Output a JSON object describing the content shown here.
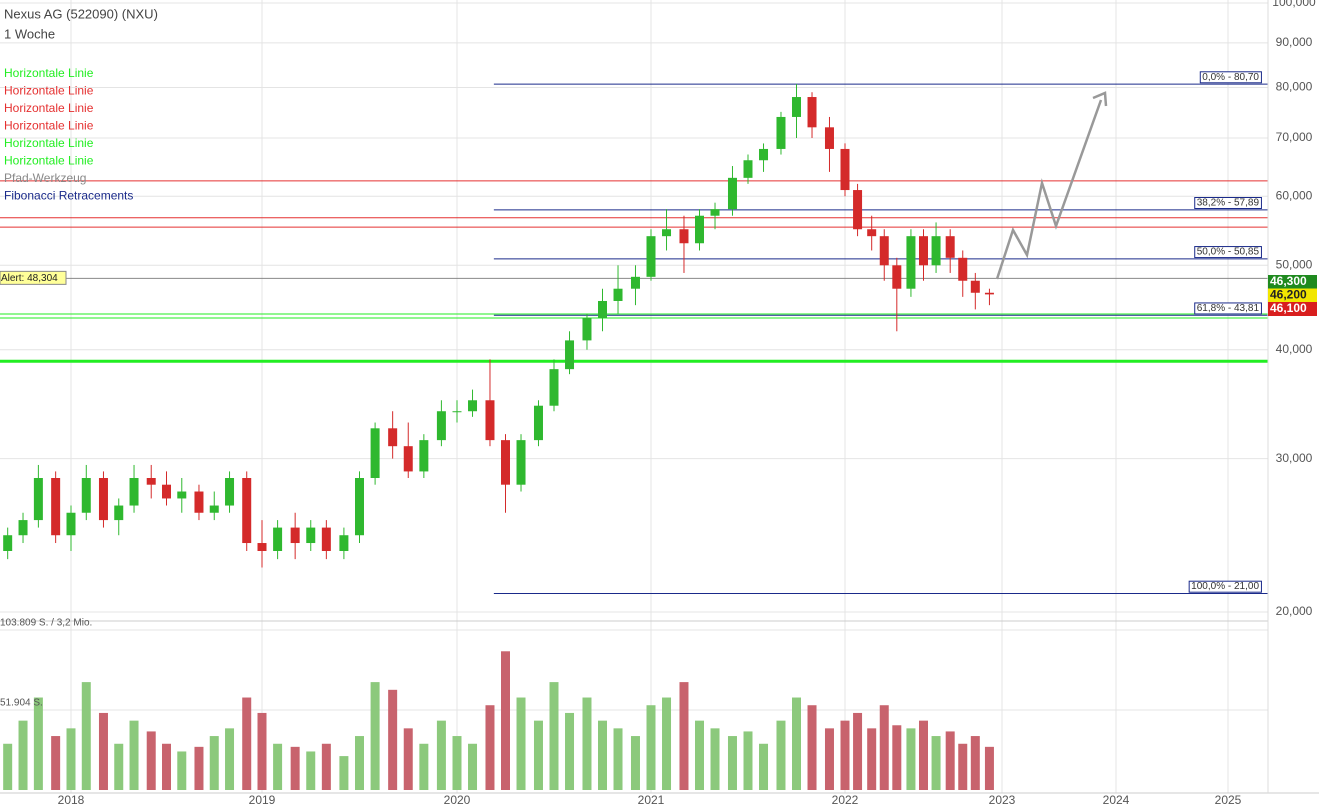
{
  "chart_data": {
    "type": "candlestick",
    "title": "Nexus AG (522090) (NXU)",
    "subtitle": "1 Woche",
    "x": [
      2017.67,
      2017.75,
      2017.83,
      2017.92,
      2018.0,
      2018.08,
      2018.17,
      2018.25,
      2018.33,
      2018.42,
      2018.5,
      2018.58,
      2018.67,
      2018.75,
      2018.83,
      2018.92,
      2019.0,
      2019.08,
      2019.17,
      2019.25,
      2019.33,
      2019.42,
      2019.5,
      2019.58,
      2019.67,
      2019.75,
      2019.83,
      2019.92,
      2020.0,
      2020.08,
      2020.17,
      2020.25,
      2020.33,
      2020.42,
      2020.5,
      2020.58,
      2020.67,
      2020.75,
      2020.83,
      2020.92,
      2021.0,
      2021.08,
      2021.17,
      2021.25,
      2021.33,
      2021.42,
      2021.5,
      2021.58,
      2021.67,
      2021.75,
      2021.83,
      2021.92,
      2022.0,
      2022.08,
      2022.17,
      2022.25,
      2022.33,
      2022.42,
      2022.5,
      2022.58,
      2022.67,
      2022.75,
      2022.83,
      2022.92
    ],
    "open": [
      23.5,
      24.5,
      25.5,
      28.5,
      24.5,
      26,
      28.5,
      25.5,
      26.5,
      28.5,
      28,
      27,
      27.5,
      26,
      26.5,
      28.5,
      24,
      23.5,
      25,
      24,
      25,
      23.5,
      24.5,
      28.5,
      32.5,
      31,
      29,
      31.5,
      34,
      34,
      35,
      31.5,
      28,
      31.5,
      34.5,
      38,
      41,
      43.5,
      45.5,
      47,
      48.5,
      54,
      55,
      53,
      57,
      58,
      63,
      66,
      68,
      74,
      78,
      72,
      68,
      61,
      55,
      54,
      50,
      47,
      54,
      50,
      54,
      51,
      48,
      46.5
    ],
    "high": [
      25,
      26,
      29.5,
      29,
      26.5,
      29.5,
      29,
      27,
      29.5,
      29.5,
      29,
      28.5,
      28,
      27.5,
      29,
      29,
      25.5,
      25.5,
      26,
      25.5,
      25.5,
      25,
      29,
      33,
      34,
      33,
      32,
      35,
      35,
      36,
      39,
      32,
      32,
      35,
      39,
      42,
      44,
      47,
      50,
      50,
      55,
      58,
      57,
      58,
      59,
      65,
      67,
      69,
      75,
      80.7,
      79,
      74,
      69,
      62,
      57,
      55,
      51,
      55,
      55,
      56,
      55,
      52,
      49,
      47
    ],
    "low": [
      23,
      24,
      25,
      24,
      23.5,
      25.5,
      25,
      24.5,
      26,
      27,
      26.5,
      26,
      25.5,
      25.5,
      26,
      23.5,
      22.5,
      23,
      23,
      23.5,
      23,
      23,
      24,
      28,
      30,
      28.5,
      28.5,
      31,
      33,
      33.5,
      31,
      26,
      27.5,
      31,
      34,
      37.5,
      40,
      42,
      44,
      45,
      48,
      52,
      49,
      52,
      55,
      57,
      62,
      64,
      67,
      70,
      70,
      64,
      60,
      54,
      52,
      48,
      42,
      46,
      48,
      49,
      49,
      46,
      44.5,
      45
    ],
    "close": [
      24.5,
      25.5,
      28.5,
      24.5,
      26,
      28.5,
      25.5,
      26.5,
      28.5,
      28,
      27,
      27.5,
      26,
      26.5,
      28.5,
      24,
      23.5,
      25,
      24,
      25,
      23.5,
      24.5,
      28.5,
      32.5,
      31,
      29,
      31.5,
      34,
      34,
      35,
      31.5,
      28,
      31.5,
      34.5,
      38,
      41,
      43.5,
      45.5,
      47,
      48.5,
      54,
      55,
      53,
      57,
      58,
      63,
      66,
      68,
      74,
      78,
      72,
      68,
      61,
      55,
      54,
      50,
      47,
      54,
      50,
      54,
      51,
      48,
      46.5,
      46.3
    ],
    "volume": [
      30000,
      45000,
      60000,
      35000,
      40000,
      70000,
      50000,
      30000,
      45000,
      38000,
      30000,
      25000,
      28000,
      35000,
      40000,
      60000,
      50000,
      30000,
      28000,
      25000,
      30000,
      22000,
      35000,
      70000,
      65000,
      40000,
      30000,
      45000,
      35000,
      30000,
      55000,
      90000,
      60000,
      45000,
      70000,
      50000,
      60000,
      45000,
      40000,
      35000,
      55000,
      60000,
      70000,
      45000,
      40000,
      35000,
      38000,
      30000,
      45000,
      60000,
      55000,
      40000,
      45000,
      50000,
      40000,
      55000,
      42000,
      40000,
      45000,
      35000,
      38000,
      30000,
      35000,
      28000
    ],
    "up_color": "#2fb82f",
    "down_color": "#d42a2a",
    "volume_up_color": "#8cc97c",
    "volume_down_color": "#c8636d",
    "log_y": true,
    "grid": true,
    "xlim": [
      2017.63,
      2025.36
    ],
    "xticks": [
      2018,
      2019,
      2020,
      2021,
      2022,
      2023,
      2024,
      2025
    ],
    "ylim": [
      19.5,
      100.8
    ],
    "yticks": [
      {
        "value": 20,
        "label": "20,000"
      },
      {
        "value": 30,
        "label": "30,000"
      },
      {
        "value": 40,
        "label": "40,000"
      },
      {
        "value": 50,
        "label": "50,000"
      },
      {
        "value": 60,
        "label": "60,000"
      },
      {
        "value": 70,
        "label": "70,000"
      },
      {
        "value": 80,
        "label": "80,000"
      },
      {
        "value": 90,
        "label": "90,000"
      },
      {
        "value": 100,
        "label": "100,000"
      }
    ],
    "volume_ylim": [
      0,
      103809
    ],
    "volume_ticks": [
      {
        "value": 103809,
        "label": "103.809 S. / 3,2 Mio."
      },
      {
        "value": 51904,
        "label": "51.904 S."
      }
    ],
    "drawings": [
      {
        "name": "Horizontale Linie",
        "color": "#22ee22",
        "value": 38.8,
        "width": 3
      },
      {
        "name": "Horizontale Linie",
        "color": "#e53030",
        "value": 62.5,
        "width": 1
      },
      {
        "name": "Horizontale Linie",
        "color": "#e53030",
        "value": 56.7,
        "width": 1
      },
      {
        "name": "Horizontale Linie",
        "color": "#e53030",
        "value": 55.3,
        "width": 1
      },
      {
        "name": "Horizontale Linie",
        "color": "#22ee22",
        "value": 43.96,
        "width": 1
      },
      {
        "name": "Horizontale Linie",
        "color": "#22ee22",
        "value": 43.5,
        "width": 1
      },
      {
        "name": "Pfad-Werkzeug",
        "color": "#888888"
      },
      {
        "name": "Fibonacci Retracements",
        "color": "#1a2a8a",
        "start": 2020.19,
        "levels": [
          {
            "value": 80.7,
            "label": "0,0% - 80,70"
          },
          {
            "value": 57.89,
            "label": "38,2% - 57,89"
          },
          {
            "value": 50.85,
            "label": "50,0% - 50,85"
          },
          {
            "value": 43.81,
            "label": "61,8% - 43,81"
          },
          {
            "value": 21.0,
            "label": "100,0% - 21,00"
          }
        ]
      }
    ],
    "alert": {
      "value": 48.304,
      "label": "Alert: 48,304"
    },
    "price_badges": [
      {
        "value": 46.3,
        "label": "46,300",
        "color": "#1f8a1f"
      },
      {
        "value": 46.2,
        "label": "46,200",
        "color": "#f2e600"
      },
      {
        "value": 46.1,
        "label": "46,100",
        "color": "#d81e1e"
      }
    ]
  }
}
